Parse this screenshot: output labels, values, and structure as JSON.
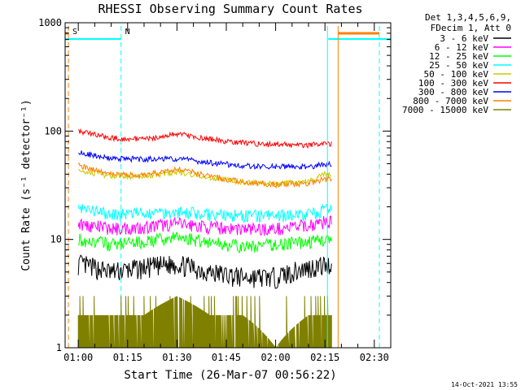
{
  "chart_data": {
    "type": "line",
    "title": "RHESSI Observing Summary Count Rates",
    "xlabel": "Start Time (26-Mar-07 00:56:22)",
    "ylabel": "Count Rate (s⁻¹ detector⁻¹)",
    "yscale": "log",
    "ylim": [
      1,
      1000
    ],
    "x_ticks": [
      "01:00",
      "01:15",
      "01:30",
      "01:45",
      "02:00",
      "02:15",
      "02:30"
    ],
    "y_ticks": [
      "1",
      "10",
      "100",
      "1000"
    ],
    "x_minutes_range": [
      -4,
      95
    ],
    "legend_position": "right",
    "legend_header": [
      "Det 1,3,4,5,6,9,",
      "FDecim 1, Att 0"
    ],
    "series": [
      {
        "name": "3 - 6 keV",
        "color": "#000000",
        "times": [
          "01:00",
          "01:10",
          "01:20",
          "01:30",
          "01:40",
          "01:50",
          "02:00",
          "02:10",
          "02:15"
        ],
        "values": [
          6,
          5,
          5.5,
          6,
          5,
          4.5,
          4.5,
          5.5,
          5.8
        ]
      },
      {
        "name": "6 - 12 keV",
        "color": "#ff00ff",
        "times": [
          "01:00",
          "01:10",
          "01:20",
          "01:30",
          "01:40",
          "01:50",
          "02:00",
          "02:10",
          "02:15"
        ],
        "values": [
          14,
          12.5,
          13,
          14,
          13,
          12.5,
          12.5,
          13.5,
          14.5
        ]
      },
      {
        "name": "12 - 25 keV",
        "color": "#00ff00",
        "times": [
          "01:00",
          "01:10",
          "01:20",
          "01:30",
          "01:40",
          "01:50",
          "02:00",
          "02:10",
          "02:15"
        ],
        "values": [
          10,
          9,
          9.5,
          10.5,
          9.5,
          8.5,
          9,
          9.5,
          10
        ]
      },
      {
        "name": "25 - 50 keV",
        "color": "#00ffff",
        "times": [
          "01:00",
          "01:10",
          "01:20",
          "01:30",
          "01:40",
          "01:50",
          "02:00",
          "02:10",
          "02:15"
        ],
        "values": [
          19,
          17,
          17.5,
          18,
          17,
          16.5,
          16.5,
          17,
          18.5
        ]
      },
      {
        "name": "50 - 100 keV",
        "color": "#cccc00",
        "times": [
          "01:00",
          "01:10",
          "01:20",
          "01:30",
          "01:40",
          "01:50",
          "02:00",
          "02:10",
          "02:15"
        ],
        "values": [
          44,
          38,
          38,
          42,
          37,
          34,
          33,
          34,
          40
        ]
      },
      {
        "name": "100 - 300 keV",
        "color": "#ff0000",
        "times": [
          "01:00",
          "01:10",
          "01:20",
          "01:30",
          "01:40",
          "01:50",
          "02:00",
          "02:10",
          "02:15"
        ],
        "values": [
          100,
          86,
          84,
          94,
          84,
          78,
          75,
          74,
          76
        ]
      },
      {
        "name": "300 - 800 keV",
        "color": "#0000ff",
        "times": [
          "01:00",
          "01:10",
          "01:20",
          "01:30",
          "01:40",
          "01:50",
          "02:00",
          "02:10",
          "02:15"
        ],
        "values": [
          63,
          56,
          55,
          56,
          51,
          48,
          47,
          47,
          49
        ]
      },
      {
        "name": "800 - 7000 keV",
        "color": "#ff8000",
        "times": [
          "01:00",
          "01:10",
          "01:20",
          "01:30",
          "01:40",
          "01:50",
          "02:00",
          "02:10",
          "02:15"
        ],
        "values": [
          48,
          40,
          39,
          45,
          38,
          34,
          32,
          33,
          36
        ]
      },
      {
        "name": "7000 - 15000 keV",
        "color": "#808000",
        "times": [
          "01:00",
          "01:10",
          "01:20",
          "01:30",
          "01:40",
          "01:50",
          "02:00",
          "02:10",
          "02:15"
        ],
        "values": [
          2,
          2,
          2,
          3,
          2,
          2,
          1,
          2,
          2
        ]
      }
    ],
    "annotations": [
      {
        "label": "S",
        "time": "00:57",
        "color": "#ff8000"
      },
      {
        "label": "N",
        "time": "01:13",
        "color": "#00ffff"
      }
    ],
    "footer_timestamp": "14-Oct-2021 13:55"
  }
}
